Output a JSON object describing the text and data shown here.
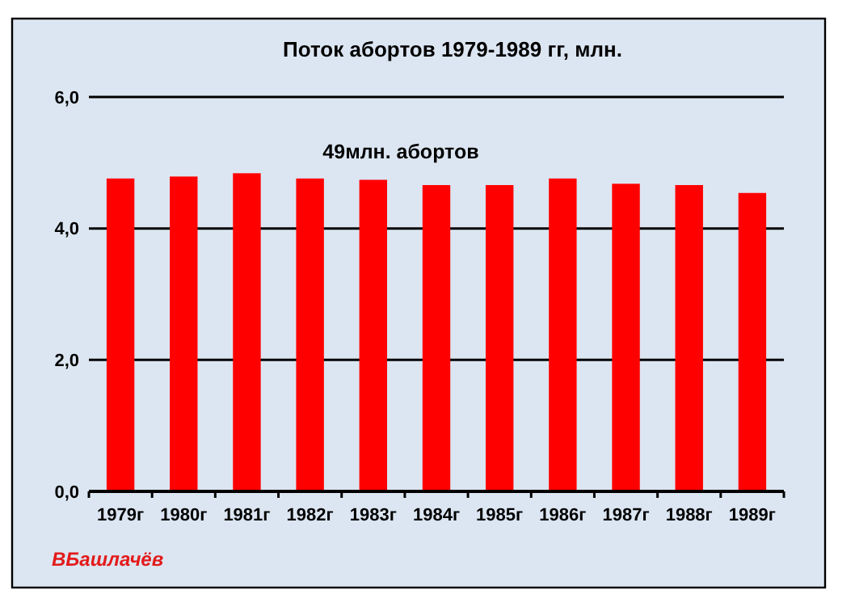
{
  "chart_data": {
    "type": "bar",
    "title": "Поток абортов 1979-1989 гг, млн.",
    "categories": [
      "1979г",
      "1980г",
      "1981г",
      "1982г",
      "1983г",
      "1984г",
      "1985г",
      "1986г",
      "1987г",
      "1988г",
      "1989г"
    ],
    "values": [
      4.76,
      4.79,
      4.84,
      4.76,
      4.74,
      4.66,
      4.66,
      4.76,
      4.68,
      4.66,
      4.54
    ],
    "color": "#ff0000",
    "ylim": [
      0,
      6
    ],
    "yticks": [
      {
        "value": 0,
        "label": "0,0"
      },
      {
        "value": 2,
        "label": "2,0"
      },
      {
        "value": 4,
        "label": "4,0"
      },
      {
        "value": 6,
        "label": "6,0"
      }
    ],
    "grid": "y",
    "annotations": [
      "49млн. абортов",
      "ВБашлачёв"
    ]
  }
}
